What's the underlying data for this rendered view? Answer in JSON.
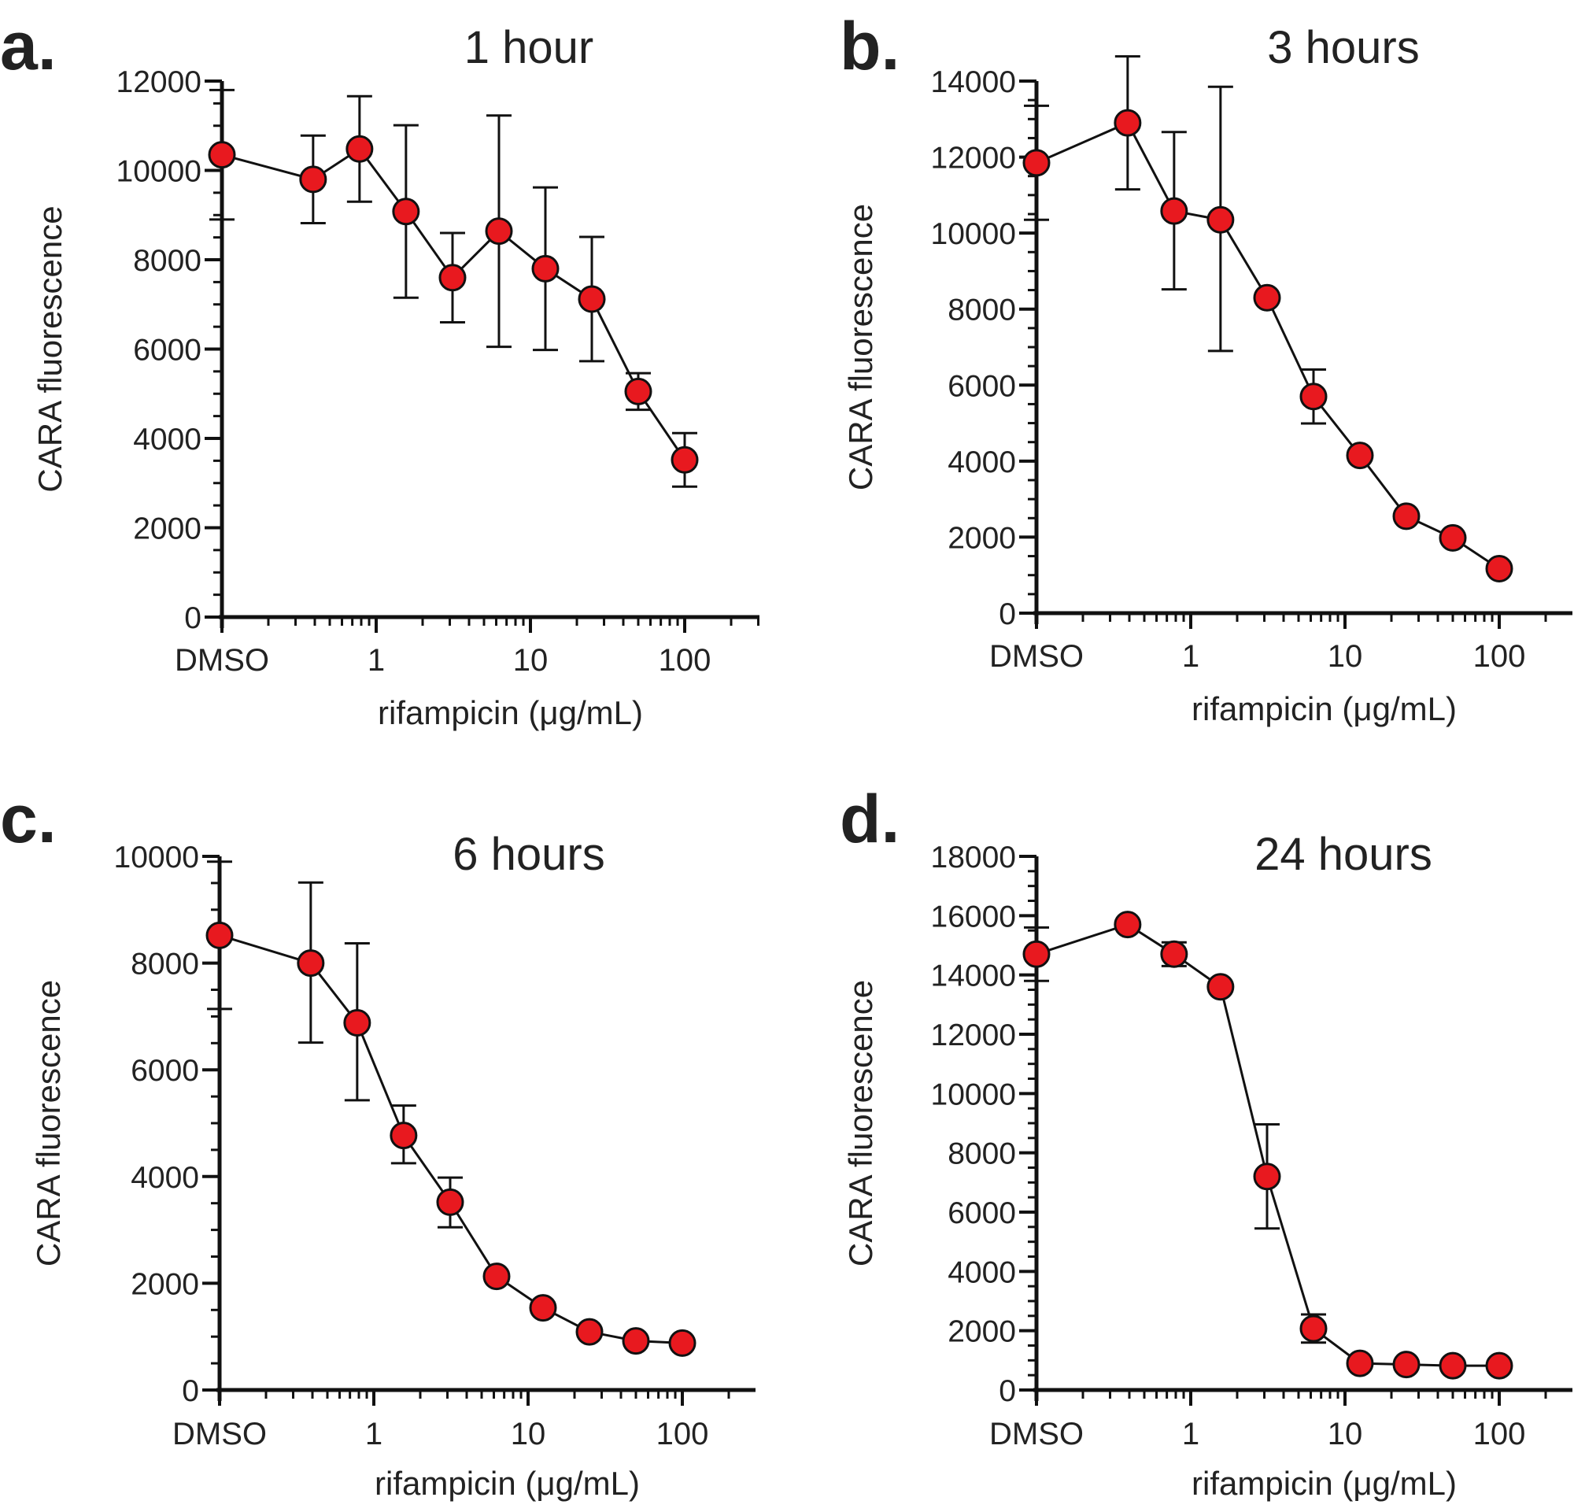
{
  "figure": {
    "x_category_label": "DMSO",
    "xlabel": "rifampicin (μg/mL)",
    "ylabel": "CARA fluorescence"
  },
  "chart_data": [
    {
      "panel": "a.",
      "title": "1 hour",
      "type": "line",
      "xscale": "log",
      "xlabel": "rifampicin (μg/mL)",
      "ylabel": "CARA fluorescence",
      "x_tick_labels": [
        "DMSO",
        "1",
        "10",
        "100"
      ],
      "x_ticks": [
        0,
        1,
        10,
        100
      ],
      "ylim": [
        0,
        12000
      ],
      "y_ticks": [
        0,
        2000,
        4000,
        6000,
        8000,
        10000,
        12000
      ],
      "series": [
        {
          "name": "CARA fluorescence",
          "x": [
            0,
            0.39,
            0.78,
            1.56,
            3.125,
            6.25,
            12.5,
            25,
            50,
            100
          ],
          "values": [
            10350,
            9800,
            10480,
            9080,
            7600,
            8640,
            7800,
            7120,
            5050,
            3520
          ],
          "err_low": [
            8900,
            8820,
            9300,
            7150,
            6600,
            6050,
            5980,
            5730,
            4640,
            2920
          ],
          "err_high": [
            11800,
            10780,
            11660,
            11010,
            8600,
            11230,
            9620,
            8510,
            5460,
            4120
          ]
        }
      ]
    },
    {
      "panel": "b.",
      "title": "3 hours",
      "type": "line",
      "xscale": "log",
      "xlabel": "rifampicin (μg/mL)",
      "ylabel": "CARA fluorescence",
      "x_tick_labels": [
        "DMSO",
        "1",
        "10",
        "100"
      ],
      "x_ticks": [
        0,
        1,
        10,
        100
      ],
      "ylim": [
        0,
        14000
      ],
      "y_ticks": [
        0,
        2000,
        4000,
        6000,
        8000,
        10000,
        12000,
        14000
      ],
      "series": [
        {
          "name": "CARA fluorescence",
          "x": [
            0,
            0.39,
            0.78,
            1.56,
            3.125,
            6.25,
            12.5,
            25,
            50,
            100
          ],
          "values": [
            11850,
            12900,
            10580,
            10350,
            8300,
            5700,
            4150,
            2550,
            1980,
            1170
          ],
          "err_low": [
            10350,
            11150,
            8520,
            6900,
            8300,
            4990,
            4150,
            2550,
            1980,
            1170
          ],
          "err_high": [
            13350,
            14650,
            12660,
            13850,
            8300,
            6410,
            4150,
            2550,
            1980,
            1170
          ]
        }
      ]
    },
    {
      "panel": "c.",
      "title": "6 hours",
      "type": "line",
      "xscale": "log",
      "xlabel": "rifampicin (μg/mL)",
      "ylabel": "CARA fluorescence",
      "x_tick_labels": [
        "DMSO",
        "1",
        "10",
        "100"
      ],
      "x_ticks": [
        0,
        1,
        10,
        100
      ],
      "ylim": [
        0,
        10000
      ],
      "y_ticks": [
        0,
        2000,
        4000,
        6000,
        8000,
        10000
      ],
      "series": [
        {
          "name": "CARA fluorescence",
          "x": [
            0,
            0.39,
            0.78,
            1.56,
            3.125,
            6.25,
            12.5,
            25,
            50,
            100
          ],
          "values": [
            8520,
            8000,
            6880,
            4770,
            3520,
            2130,
            1540,
            1090,
            920,
            880
          ],
          "err_low": [
            7140,
            6510,
            5430,
            4250,
            3050,
            2130,
            1540,
            1090,
            920,
            880
          ],
          "err_high": [
            9900,
            9510,
            8370,
            5330,
            3980,
            2130,
            1540,
            1090,
            920,
            880
          ]
        }
      ]
    },
    {
      "panel": "d.",
      "title": "24 hours",
      "type": "line",
      "xscale": "log",
      "xlabel": "rifampicin (μg/mL)",
      "ylabel": "CARA fluorescence",
      "x_tick_labels": [
        "DMSO",
        "1",
        "10",
        "100"
      ],
      "x_ticks": [
        0,
        1,
        10,
        100
      ],
      "ylim": [
        0,
        18000
      ],
      "y_ticks": [
        0,
        2000,
        4000,
        6000,
        8000,
        10000,
        12000,
        14000,
        16000,
        18000
      ],
      "series": [
        {
          "name": "CARA fluorescence",
          "x": [
            0,
            0.39,
            0.78,
            1.56,
            3.125,
            6.25,
            12.5,
            25,
            50,
            100
          ],
          "values": [
            14700,
            15700,
            14700,
            13600,
            7200,
            2070,
            900,
            860,
            820,
            820
          ],
          "err_low": [
            13800,
            15700,
            14300,
            13600,
            5450,
            1600,
            900,
            860,
            820,
            820
          ],
          "err_high": [
            15600,
            15700,
            15100,
            13600,
            8960,
            2550,
            900,
            860,
            820,
            820
          ]
        }
      ]
    }
  ]
}
